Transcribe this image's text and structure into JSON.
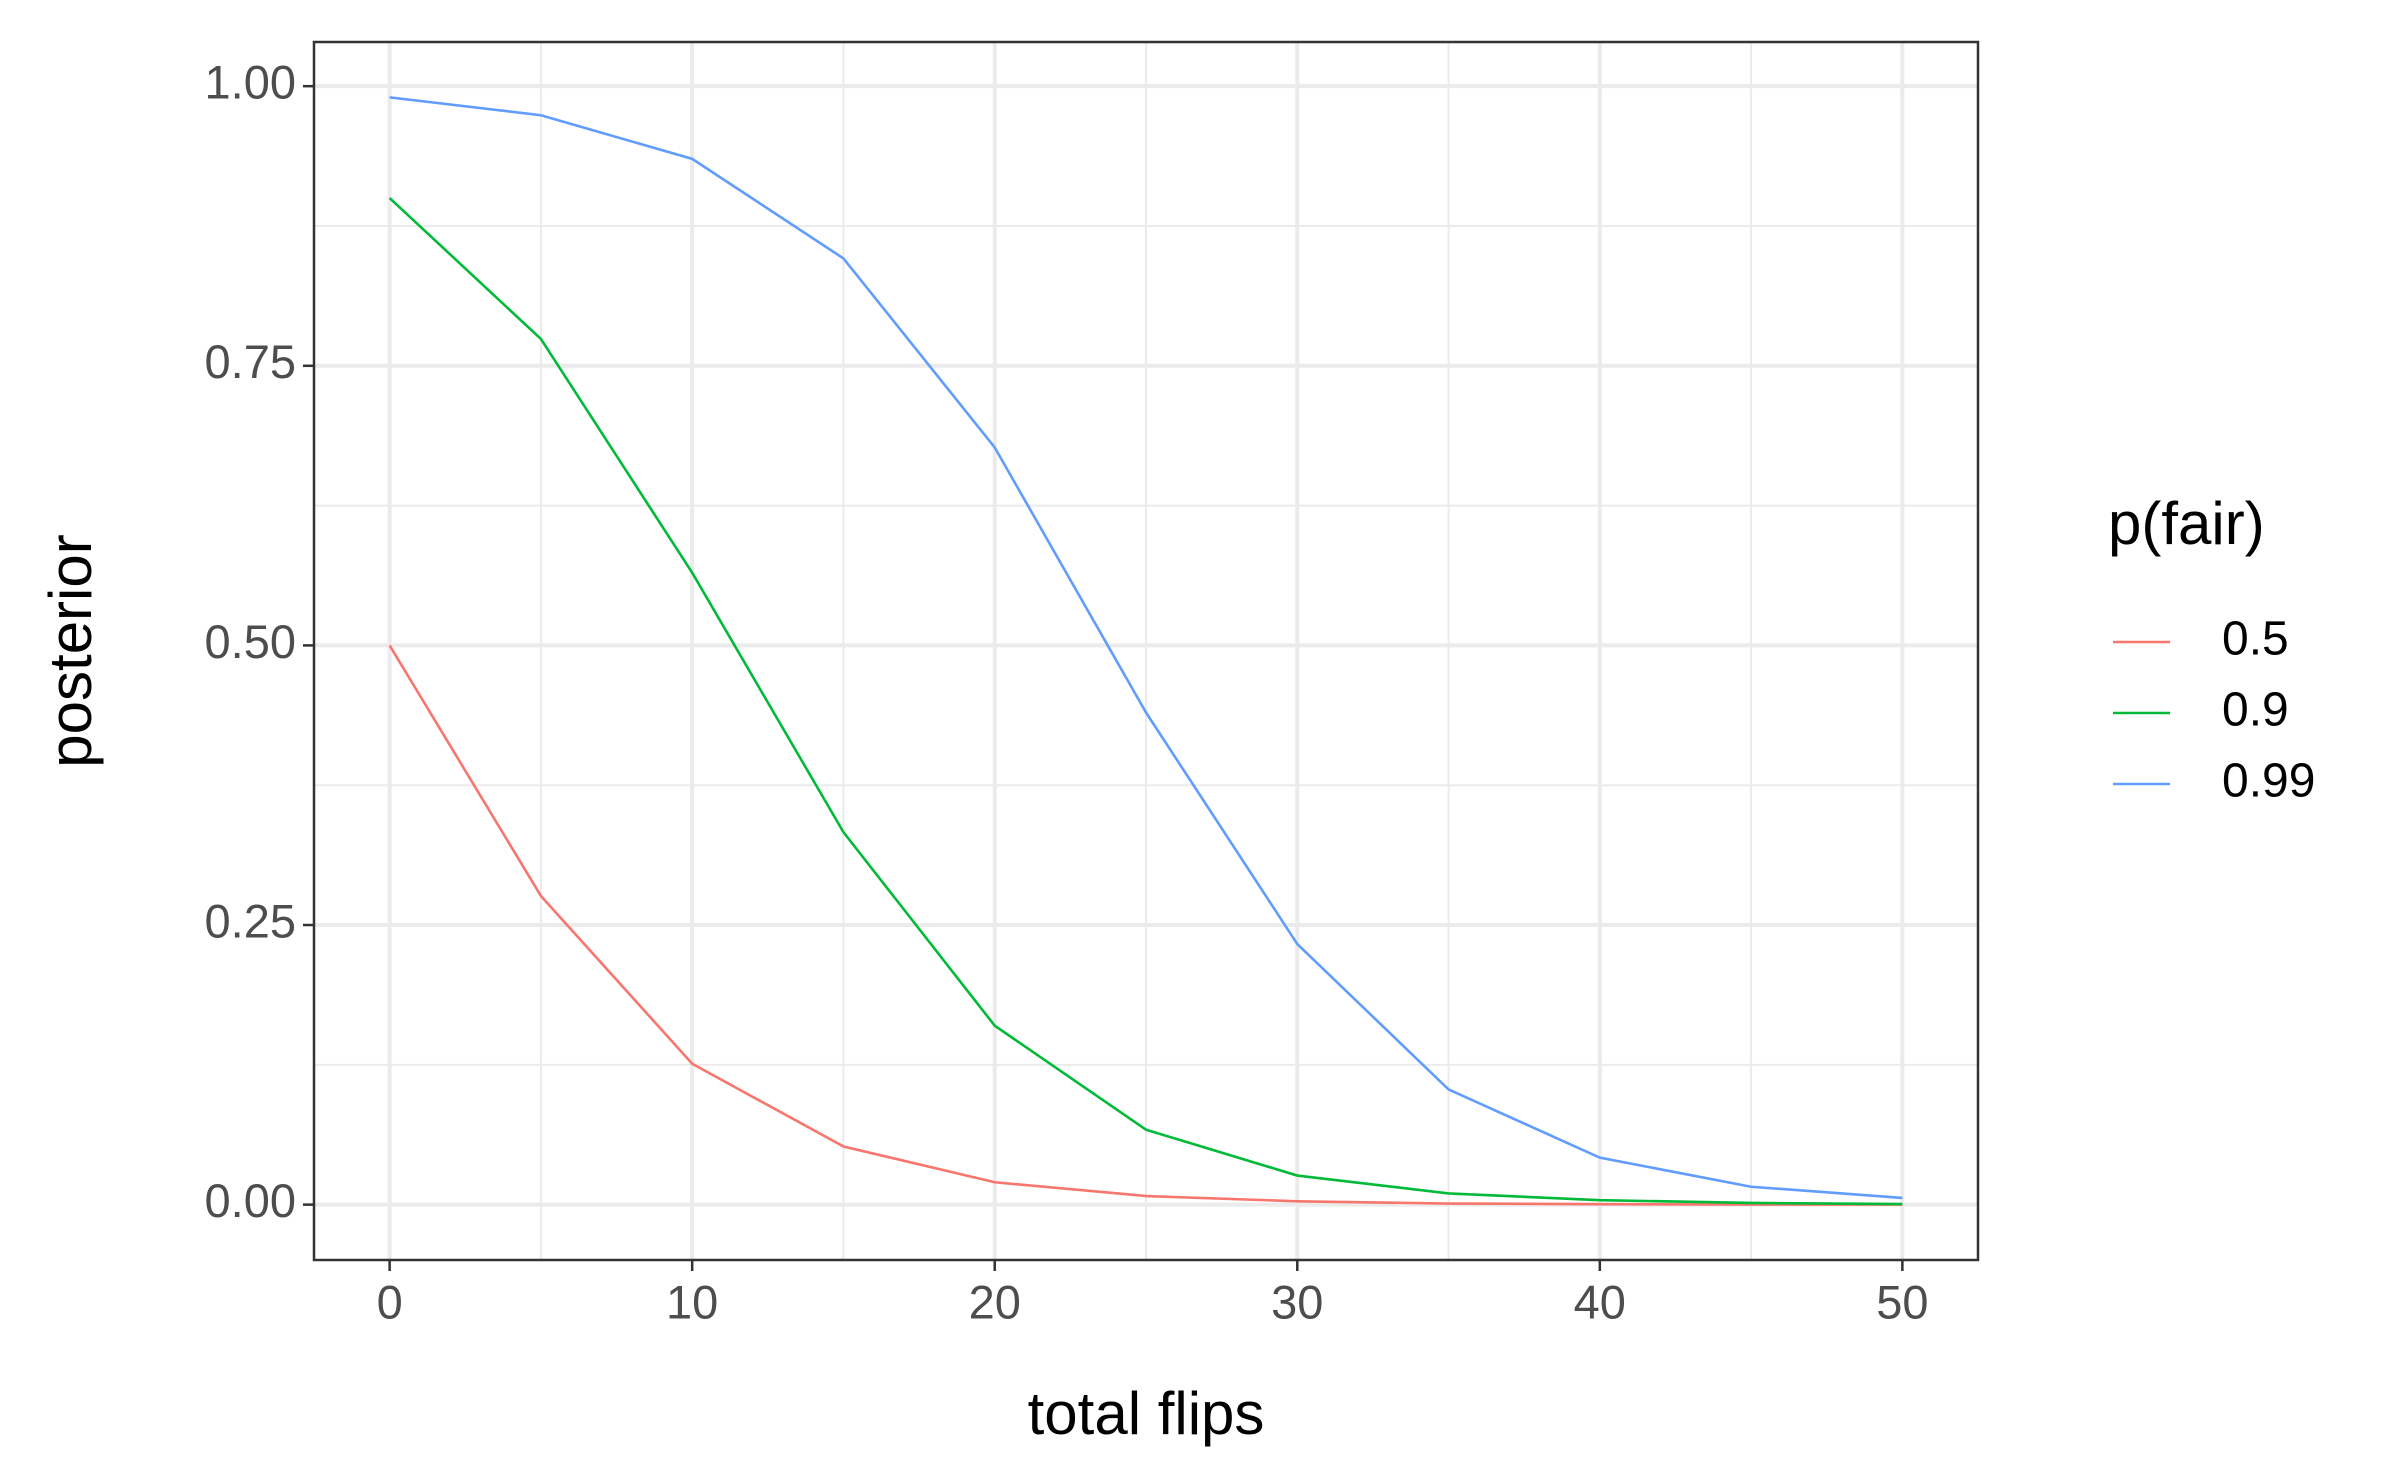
{
  "chart_data": {
    "type": "line",
    "x_label": "total flips",
    "y_label": "posterior",
    "legend_title": "p(fair)",
    "x": [
      0,
      5,
      10,
      15,
      20,
      25,
      30,
      35,
      40,
      45,
      50
    ],
    "series": [
      {
        "name": "0.5",
        "color": "#f8766d",
        "values": [
          0.5,
          0.276,
          0.126,
          0.052,
          0.02,
          0.0077,
          0.003,
          0.001,
          0.0004,
          0.0001,
          5e-05
        ]
      },
      {
        "name": "0.9",
        "color": "#00ba38",
        "values": [
          0.9,
          0.774,
          0.565,
          0.333,
          0.16,
          0.067,
          0.026,
          0.01,
          0.004,
          0.0015,
          0.0005
        ]
      },
      {
        "name": "0.99",
        "color": "#619cff",
        "values": [
          0.99,
          0.974,
          0.935,
          0.846,
          0.677,
          0.44,
          0.233,
          0.103,
          0.042,
          0.016,
          0.006
        ]
      }
    ],
    "xlim": [
      -2.5,
      52.5
    ],
    "ylim": [
      -0.0495,
      1.0395
    ],
    "xticks": [
      0,
      10,
      20,
      30,
      40,
      50
    ],
    "yticks": [
      {
        "value": 0,
        "label": "0.00"
      },
      {
        "value": 0.25,
        "label": "0.25"
      },
      {
        "value": 0.5,
        "label": "0.50"
      },
      {
        "value": 0.75,
        "label": "0.75"
      },
      {
        "value": 1,
        "label": "1.00"
      }
    ],
    "xminor": [
      5,
      15,
      25,
      35,
      45
    ],
    "yminor": [
      0.125,
      0.375,
      0.625,
      0.875
    ],
    "grid": true,
    "legend": "right"
  }
}
